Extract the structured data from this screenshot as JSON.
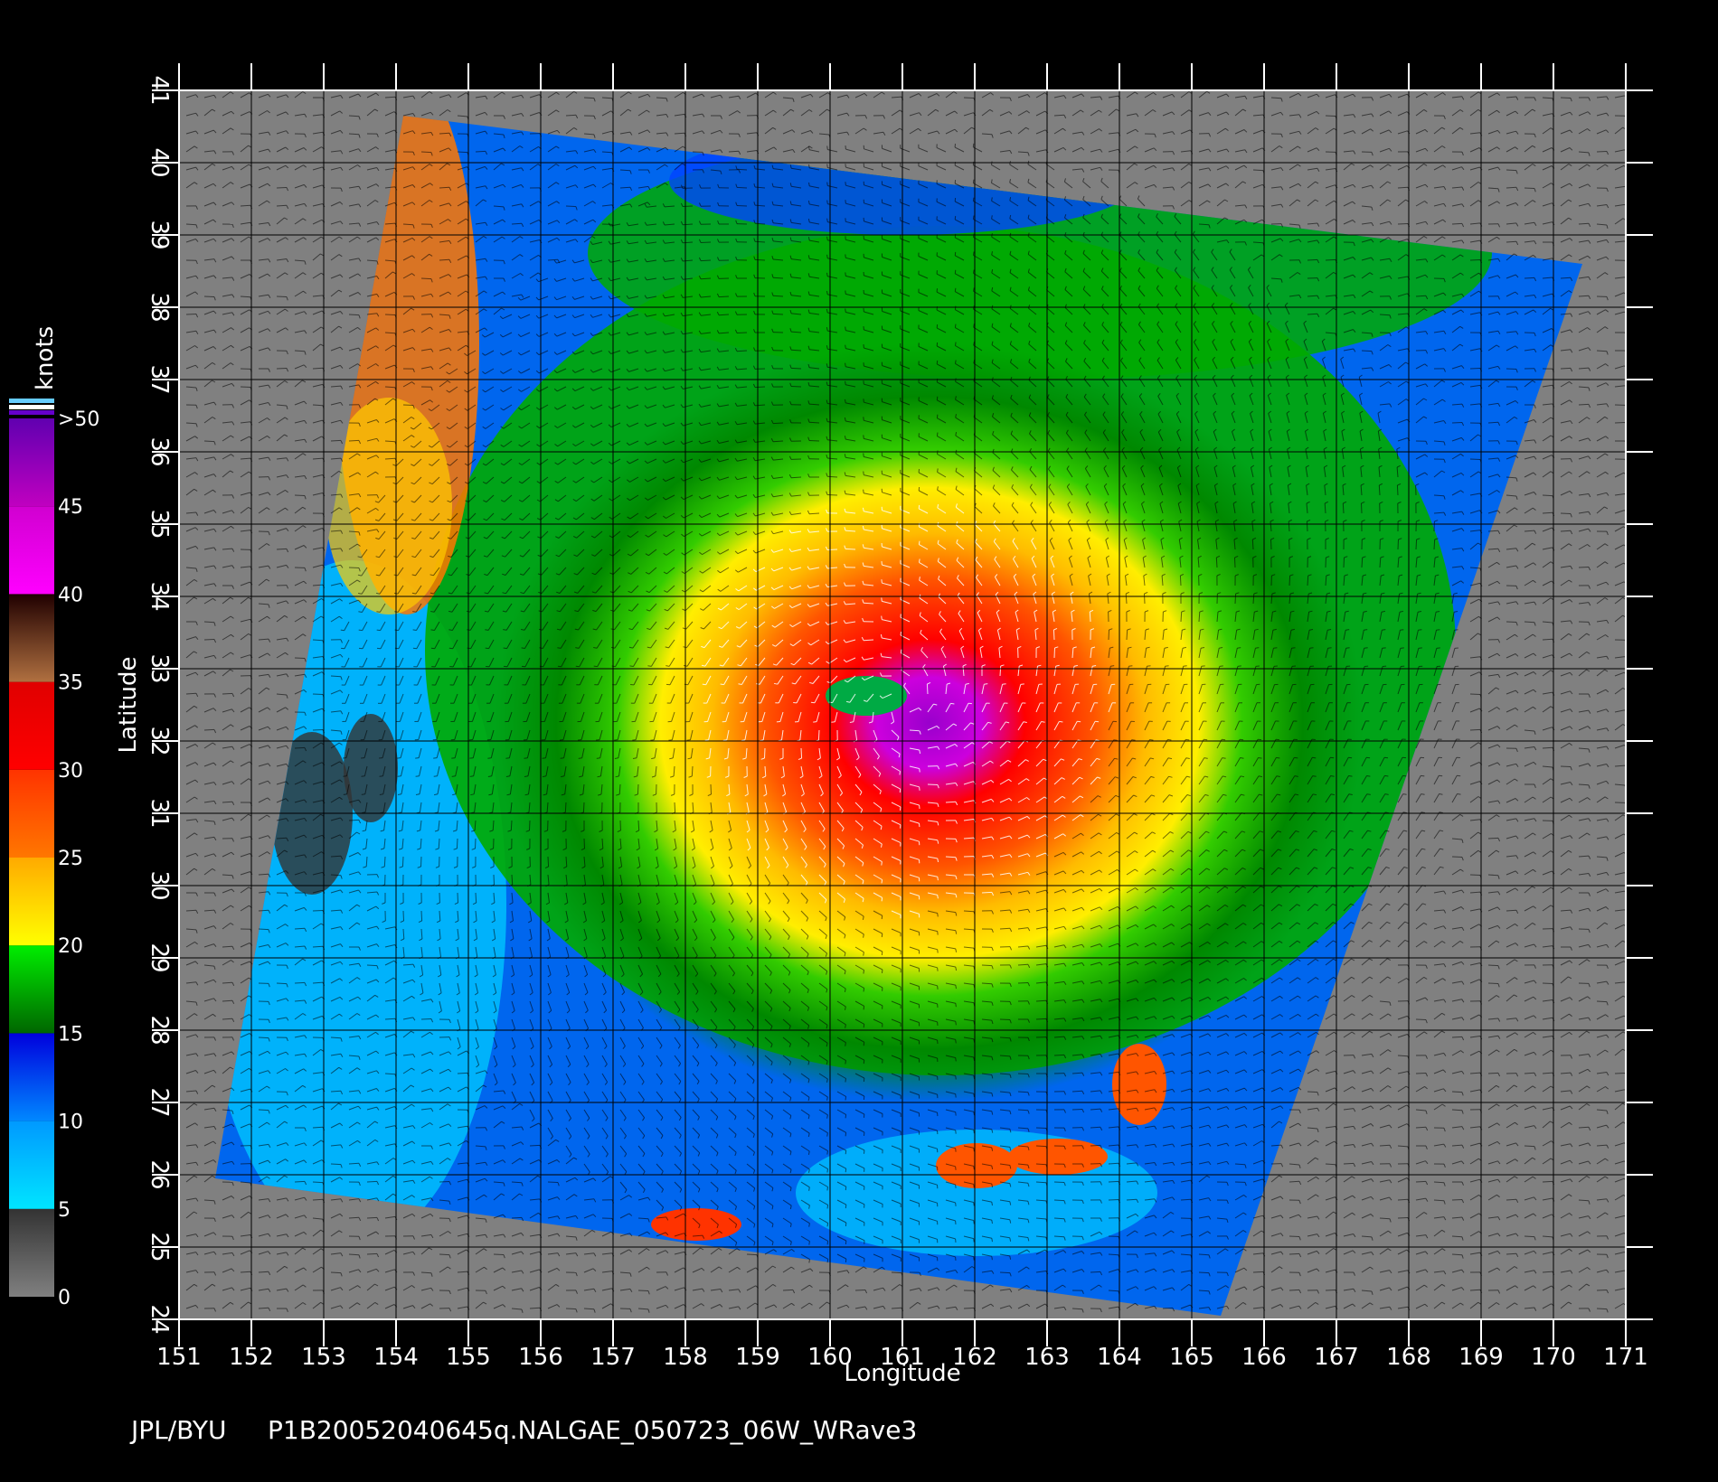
{
  "map": {
    "lon_axis": {
      "title": "Longitude",
      "min": 151,
      "max": 171,
      "ticks": [
        151,
        152,
        153,
        154,
        155,
        156,
        157,
        158,
        159,
        160,
        161,
        162,
        163,
        164,
        165,
        166,
        167,
        168,
        169,
        170,
        171
      ]
    },
    "lat_axis": {
      "title": "Latitude",
      "min": 24,
      "max": 41,
      "ticks": [
        24,
        25,
        26,
        27,
        28,
        29,
        30,
        31,
        32,
        33,
        34,
        35,
        36,
        37,
        38,
        39,
        40,
        41
      ]
    },
    "swath_corners": [
      {
        "lon": 154.1,
        "lat": 40.65
      },
      {
        "lon": 170.4,
        "lat": 38.6
      },
      {
        "lon": 165.4,
        "lat": 24.05
      },
      {
        "lon": 151.5,
        "lat": 25.95
      }
    ],
    "cyclone_center": {
      "lon": 161.0,
      "lat": 32.5
    },
    "background_color": "#808080",
    "grid": true
  },
  "colorbar": {
    "unit": "knots",
    "ticks": [
      "0",
      "5",
      "10",
      "15",
      "20",
      "25",
      "30",
      "35",
      "40",
      "45",
      ">50"
    ],
    "bands": [
      {
        "from": 0,
        "to": 5,
        "colors": [
          "#808080",
          "#333333"
        ]
      },
      {
        "from": 5,
        "to": 10,
        "colors": [
          "#00e5ff",
          "#0099ff"
        ]
      },
      {
        "from": 10,
        "to": 15,
        "colors": [
          "#0088ff",
          "#0000dd"
        ]
      },
      {
        "from": 15,
        "to": 20,
        "colors": [
          "#006600",
          "#00ee00"
        ]
      },
      {
        "from": 20,
        "to": 25,
        "colors": [
          "#ffff00",
          "#ffaa00"
        ]
      },
      {
        "from": 25,
        "to": 30,
        "colors": [
          "#ff7700",
          "#ff3300"
        ]
      },
      {
        "from": 30,
        "to": 35,
        "colors": [
          "#ff0000",
          "#e00000"
        ]
      },
      {
        "from": 35,
        "to": 40,
        "colors": [
          "#b07040",
          "#200000"
        ]
      },
      {
        "from": 40,
        "to": 45,
        "colors": [
          "#ff00ff",
          "#d000d0"
        ]
      },
      {
        "from": 45,
        "to": 50,
        "colors": [
          "#c000c0",
          "#6000b0"
        ]
      }
    ]
  },
  "footer": {
    "credit": "JPL/BYU",
    "filename": "P1B20052040645q.NALGAE_050723_06W_WRave3"
  }
}
